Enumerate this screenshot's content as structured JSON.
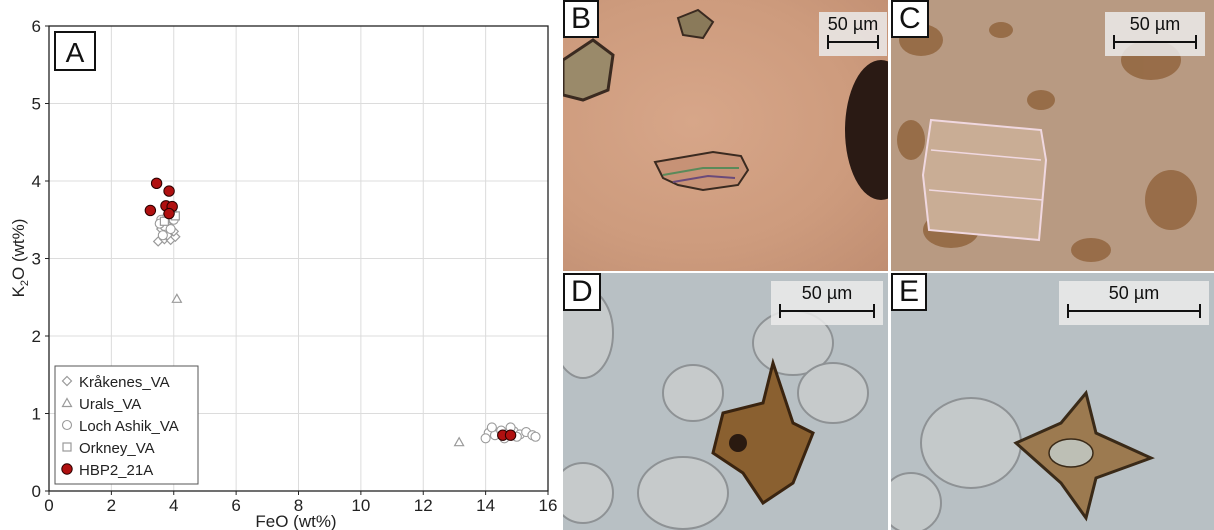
{
  "panel_a": {
    "letter": "A",
    "chart_data": {
      "type": "scatter",
      "xlabel": "FeO (wt%)",
      "ylabel_main": "K",
      "ylabel_sub": "2",
      "ylabel_rest": "O (wt%)",
      "xlim": [
        0,
        16
      ],
      "ylim": [
        0,
        6
      ],
      "x_ticks": [
        "0",
        "2",
        "4",
        "6",
        "8",
        "10",
        "12",
        "14",
        "16"
      ],
      "y_ticks": [
        "0",
        "1",
        "2",
        "3",
        "4",
        "5",
        "6"
      ],
      "grid": true,
      "legend_position": "bottom-left",
      "series": [
        {
          "name": "Kråkenes_VA",
          "marker": "diamond",
          "color": "#9a9a9a",
          "points": [
            [
              3.5,
              3.22
            ],
            [
              3.7,
              3.25
            ],
            [
              3.9,
              3.24
            ],
            [
              4.05,
              3.28
            ],
            [
              3.6,
              3.38
            ],
            [
              3.8,
              3.3
            ],
            [
              4.0,
              3.35
            ],
            [
              3.75,
              3.45
            ]
          ]
        },
        {
          "name": "Urals_VA",
          "marker": "triangle",
          "color": "#9a9a9a",
          "points": [
            [
              4.1,
              2.48
            ],
            [
              13.15,
              0.63
            ]
          ]
        },
        {
          "name": "Loch Ashik_VA",
          "marker": "circle",
          "color": "#9a9a9a",
          "points": [
            [
              3.6,
              3.5
            ],
            [
              3.7,
              3.42
            ],
            [
              3.8,
              3.55
            ],
            [
              3.9,
              3.38
            ],
            [
              3.65,
              3.3
            ],
            [
              4.0,
              3.5
            ],
            [
              3.85,
              3.62
            ],
            [
              3.55,
              3.45
            ],
            [
              14.1,
              0.75
            ],
            [
              14.3,
              0.72
            ],
            [
              14.5,
              0.78
            ],
            [
              14.7,
              0.74
            ],
            [
              14.9,
              0.77
            ],
            [
              15.1,
              0.73
            ],
            [
              15.3,
              0.76
            ],
            [
              15.5,
              0.72
            ],
            [
              14.2,
              0.82
            ],
            [
              14.6,
              0.68
            ],
            [
              15.0,
              0.7
            ],
            [
              15.6,
              0.7
            ],
            [
              14.0,
              0.68
            ],
            [
              14.8,
              0.82
            ]
          ]
        },
        {
          "name": "Orkney_VA",
          "marker": "square",
          "color": "#9a9a9a",
          "points": [
            [
              4.05,
              3.55
            ],
            [
              3.95,
              3.65
            ],
            [
              3.7,
              3.48
            ]
          ]
        },
        {
          "name": "HBP2_21A",
          "marker": "filled-circle",
          "color": "#b01010",
          "points": [
            [
              3.25,
              3.62
            ],
            [
              3.45,
              3.97
            ],
            [
              3.85,
              3.87
            ],
            [
              3.75,
              3.68
            ],
            [
              3.95,
              3.67
            ],
            [
              3.85,
              3.58
            ],
            [
              14.55,
              0.72
            ],
            [
              14.8,
              0.72
            ]
          ]
        }
      ]
    }
  },
  "panel_b": {
    "letter": "B",
    "scale_label": "50 µm"
  },
  "panel_c": {
    "letter": "C",
    "scale_label": "50 µm"
  },
  "panel_d": {
    "letter": "D",
    "scale_label": "50 µm"
  },
  "panel_e": {
    "letter": "E",
    "scale_label": "50 µm"
  }
}
